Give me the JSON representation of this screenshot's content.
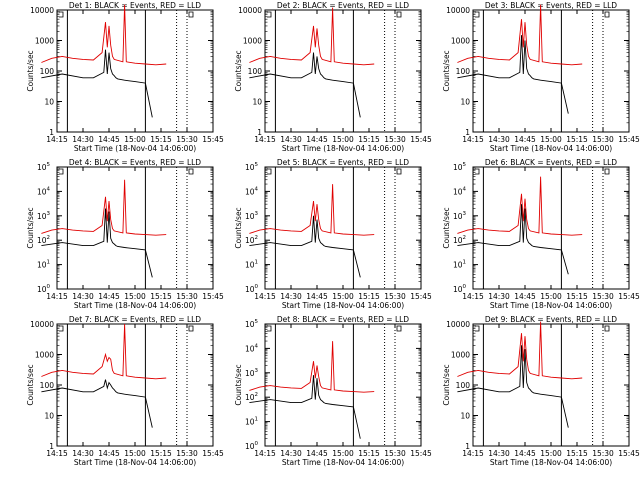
{
  "figure": {
    "xticks": [
      "14:15",
      "14:30",
      "14:45",
      "15:00",
      "15:15",
      "15:30",
      "15:45"
    ],
    "xlabel": "Start Time (18-Nov-04 14:06:00)",
    "ylabel": "Counts/sec",
    "colors": {
      "events": "#000000",
      "lld": "#e00000"
    }
  },
  "chart_data": [
    {
      "type": "line",
      "title": "Det 1: BLACK = Events, RED = LLD",
      "ytick_style": "plain",
      "yticks": [
        "1",
        "10",
        "100",
        "1000",
        "10000"
      ],
      "ylim": [
        1,
        10000
      ],
      "ylog": true,
      "series": [
        {
          "name": "Events",
          "x_minutes": [
            0,
            12,
            24,
            30,
            36,
            37,
            38,
            39,
            40,
            41,
            42,
            43,
            44,
            48,
            54,
            60,
            64
          ],
          "values": [
            60,
            80,
            60,
            60,
            90,
            500,
            80,
            400,
            120,
            80,
            70,
            60,
            55,
            50,
            45,
            40,
            3
          ]
        },
        {
          "name": "LLD",
          "x_minutes": [
            0,
            6,
            12,
            18,
            24,
            30,
            35,
            37,
            38,
            39,
            40,
            41,
            42,
            47,
            48,
            49,
            54,
            60,
            66,
            72
          ],
          "values": [
            190,
            260,
            300,
            260,
            240,
            230,
            400,
            4000,
            600,
            3000,
            700,
            300,
            240,
            200,
            15000,
            200,
            180,
            170,
            160,
            170
          ]
        }
      ]
    },
    {
      "type": "line",
      "title": "Det 2: BLACK = Events, RED = LLD",
      "ytick_style": "plain",
      "yticks": [
        "1",
        "10",
        "100",
        "1000",
        "10000"
      ],
      "ylim": [
        1,
        10000
      ],
      "ylog": true,
      "series": [
        {
          "name": "Events",
          "x_minutes": [
            0,
            12,
            24,
            30,
            36,
            37,
            38,
            39,
            40,
            41,
            42,
            43,
            44,
            48,
            54,
            60,
            64
          ],
          "values": [
            60,
            80,
            60,
            60,
            90,
            400,
            80,
            300,
            120,
            80,
            70,
            60,
            55,
            50,
            45,
            40,
            3
          ]
        },
        {
          "name": "LLD",
          "x_minutes": [
            0,
            6,
            12,
            18,
            24,
            30,
            35,
            37,
            38,
            39,
            40,
            41,
            42,
            47,
            48,
            49,
            54,
            60,
            66,
            72
          ],
          "values": [
            190,
            260,
            300,
            260,
            240,
            230,
            400,
            3000,
            600,
            2500,
            700,
            300,
            240,
            200,
            12000,
            200,
            180,
            170,
            160,
            170
          ]
        }
      ]
    },
    {
      "type": "line",
      "title": "Det 3: BLACK = Events, RED = LLD",
      "ytick_style": "plain",
      "yticks": [
        "1",
        "10",
        "100",
        "1000",
        "10000"
      ],
      "ylim": [
        1,
        10000
      ],
      "ylog": true,
      "series": [
        {
          "name": "Events",
          "x_minutes": [
            0,
            12,
            24,
            30,
            36,
            37,
            38,
            39,
            40,
            41,
            42,
            43,
            44,
            48,
            54,
            60,
            64
          ],
          "values": [
            60,
            80,
            60,
            60,
            90,
            1500,
            80,
            1000,
            120,
            80,
            70,
            60,
            55,
            50,
            45,
            40,
            4
          ]
        },
        {
          "name": "LLD",
          "x_minutes": [
            0,
            6,
            12,
            18,
            24,
            30,
            35,
            37,
            38,
            39,
            40,
            41,
            42,
            47,
            48,
            49,
            54,
            60,
            66,
            72
          ],
          "values": [
            190,
            260,
            300,
            260,
            240,
            230,
            400,
            5000,
            600,
            4000,
            700,
            300,
            240,
            200,
            15000,
            200,
            180,
            170,
            160,
            170
          ]
        }
      ]
    },
    {
      "type": "line",
      "title": "Det 4: BLACK = Events, RED = LLD",
      "ytick_style": "exp",
      "yticks": [
        "10",
        "10",
        "10",
        "10",
        "10",
        "10"
      ],
      "ytick_exponents": [
        "0",
        "1",
        "2",
        "3",
        "4",
        "5"
      ],
      "ylim": [
        1,
        100000
      ],
      "ylog": true,
      "series": [
        {
          "name": "Events",
          "x_minutes": [
            0,
            12,
            24,
            30,
            36,
            37,
            38,
            39,
            40,
            41,
            42,
            43,
            44,
            48,
            54,
            60,
            64
          ],
          "values": [
            60,
            80,
            60,
            60,
            90,
            2000,
            80,
            1500,
            120,
            80,
            70,
            60,
            55,
            50,
            45,
            40,
            3
          ]
        },
        {
          "name": "LLD",
          "x_minutes": [
            0,
            6,
            12,
            18,
            24,
            30,
            35,
            37,
            38,
            39,
            40,
            41,
            42,
            47,
            48,
            49,
            54,
            60,
            66,
            72
          ],
          "values": [
            190,
            260,
            300,
            260,
            240,
            230,
            400,
            6000,
            600,
            4000,
            700,
            300,
            240,
            200,
            30000,
            200,
            180,
            170,
            160,
            170
          ]
        }
      ]
    },
    {
      "type": "line",
      "title": "Det 5: BLACK = Events, RED = LLD",
      "ytick_style": "exp",
      "yticks": [
        "10",
        "10",
        "10",
        "10",
        "10",
        "10"
      ],
      "ytick_exponents": [
        "0",
        "1",
        "2",
        "3",
        "4",
        "5"
      ],
      "ylim": [
        1,
        100000
      ],
      "ylog": true,
      "series": [
        {
          "name": "Events",
          "x_minutes": [
            0,
            12,
            24,
            30,
            36,
            37,
            38,
            39,
            40,
            41,
            42,
            43,
            44,
            48,
            54,
            60,
            64
          ],
          "values": [
            60,
            80,
            60,
            60,
            90,
            1000,
            80,
            700,
            120,
            80,
            70,
            60,
            55,
            50,
            45,
            40,
            3
          ]
        },
        {
          "name": "LLD",
          "x_minutes": [
            0,
            6,
            12,
            18,
            24,
            30,
            35,
            37,
            38,
            39,
            40,
            41,
            42,
            47,
            48,
            49,
            54,
            60,
            66,
            72
          ],
          "values": [
            190,
            260,
            300,
            260,
            240,
            230,
            400,
            4000,
            600,
            3000,
            700,
            300,
            240,
            200,
            20000,
            200,
            180,
            170,
            160,
            170
          ]
        }
      ]
    },
    {
      "type": "line",
      "title": "Det 6: BLACK = Events, RED = LLD",
      "ytick_style": "exp",
      "yticks": [
        "10",
        "10",
        "10",
        "10",
        "10",
        "10"
      ],
      "ytick_exponents": [
        "0",
        "1",
        "2",
        "3",
        "4",
        "5"
      ],
      "ylim": [
        1,
        100000
      ],
      "ylog": true,
      "series": [
        {
          "name": "Events",
          "x_minutes": [
            0,
            12,
            24,
            30,
            36,
            37,
            38,
            39,
            40,
            41,
            42,
            43,
            44,
            48,
            54,
            60,
            64
          ],
          "values": [
            60,
            80,
            60,
            60,
            90,
            3000,
            80,
            2000,
            120,
            80,
            70,
            60,
            55,
            50,
            45,
            40,
            4
          ]
        },
        {
          "name": "LLD",
          "x_minutes": [
            0,
            6,
            12,
            18,
            24,
            30,
            35,
            37,
            38,
            39,
            40,
            41,
            42,
            47,
            48,
            49,
            54,
            60,
            66,
            72
          ],
          "values": [
            190,
            260,
            300,
            260,
            240,
            230,
            400,
            8000,
            600,
            5000,
            700,
            300,
            240,
            200,
            40000,
            200,
            180,
            170,
            160,
            170
          ]
        }
      ]
    },
    {
      "type": "line",
      "title": "Det 7: BLACK = Events, RED = LLD",
      "ytick_style": "plain",
      "yticks": [
        "1",
        "10",
        "100",
        "1000",
        "10000"
      ],
      "ylim": [
        1,
        10000
      ],
      "ylog": true,
      "series": [
        {
          "name": "Events",
          "x_minutes": [
            0,
            12,
            24,
            30,
            36,
            37,
            38,
            39,
            40,
            41,
            42,
            43,
            44,
            48,
            54,
            60,
            64
          ],
          "values": [
            60,
            80,
            60,
            60,
            90,
            150,
            80,
            120,
            100,
            80,
            70,
            60,
            55,
            50,
            45,
            40,
            4
          ]
        },
        {
          "name": "LLD",
          "x_minutes": [
            0,
            6,
            12,
            18,
            24,
            30,
            35,
            37,
            38,
            39,
            40,
            41,
            42,
            47,
            48,
            49,
            54,
            60,
            66,
            72
          ],
          "values": [
            190,
            260,
            300,
            260,
            240,
            230,
            400,
            1000,
            600,
            800,
            700,
            300,
            240,
            200,
            10000,
            200,
            180,
            170,
            160,
            170
          ]
        }
      ]
    },
    {
      "type": "line",
      "title": "Det 8: BLACK = Events, RED = LLD",
      "ytick_style": "exp",
      "yticks": [
        "10",
        "10",
        "10",
        "10",
        "10",
        "10"
      ],
      "ytick_exponents": [
        "0",
        "1",
        "2",
        "3",
        "4",
        "5"
      ],
      "ylim": [
        1,
        100000
      ],
      "ylog": true,
      "series": [
        {
          "name": "Events",
          "x_minutes": [
            0,
            12,
            24,
            30,
            36,
            37,
            38,
            39,
            40,
            41,
            42,
            43,
            44,
            48,
            54,
            60,
            64
          ],
          "values": [
            60,
            80,
            60,
            60,
            90,
            800,
            80,
            600,
            120,
            80,
            70,
            60,
            55,
            50,
            45,
            40,
            2
          ]
        },
        {
          "name": "LLD",
          "x_minutes": [
            0,
            6,
            12,
            18,
            24,
            30,
            35,
            37,
            38,
            39,
            40,
            41,
            42,
            47,
            48,
            49,
            54,
            60,
            66,
            72
          ],
          "values": [
            190,
            260,
            300,
            260,
            240,
            230,
            400,
            3000,
            600,
            2000,
            700,
            300,
            240,
            200,
            20000,
            200,
            180,
            170,
            160,
            170
          ]
        }
      ]
    },
    {
      "type": "line",
      "title": "Det 9: BLACK = Events, RED = LLD",
      "ytick_style": "plain",
      "yticks": [
        "1",
        "10",
        "100",
        "1000",
        "10000"
      ],
      "ylim": [
        1,
        10000
      ],
      "ylog": true,
      "series": [
        {
          "name": "Events",
          "x_minutes": [
            0,
            12,
            24,
            30,
            36,
            37,
            38,
            39,
            40,
            41,
            42,
            43,
            44,
            48,
            54,
            60,
            64
          ],
          "values": [
            60,
            80,
            60,
            60,
            90,
            2000,
            80,
            1500,
            120,
            80,
            70,
            60,
            55,
            50,
            45,
            40,
            4
          ]
        },
        {
          "name": "LLD",
          "x_minutes": [
            0,
            6,
            12,
            18,
            24,
            30,
            35,
            37,
            38,
            39,
            40,
            41,
            42,
            47,
            48,
            49,
            54,
            60,
            66,
            72
          ],
          "values": [
            190,
            260,
            300,
            260,
            240,
            230,
            400,
            5000,
            600,
            4000,
            700,
            300,
            240,
            200,
            12000,
            200,
            180,
            170,
            160,
            170
          ]
        }
      ]
    }
  ]
}
